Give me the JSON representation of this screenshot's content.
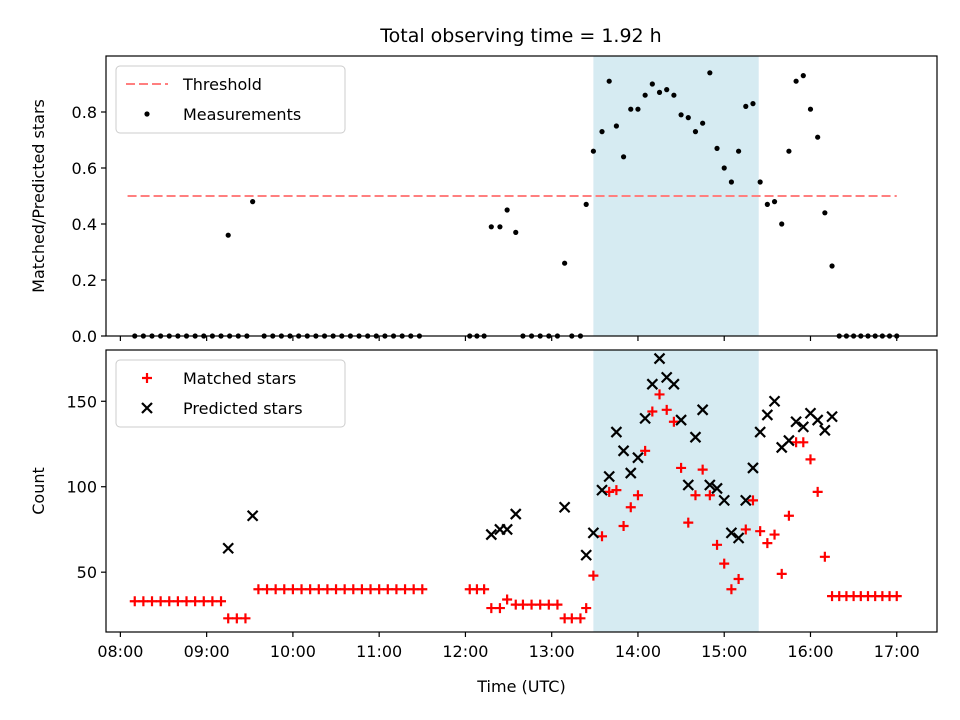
{
  "title": "Total observing time = 1.92 h",
  "chart_data": [
    {
      "type": "scatter",
      "ylabel": "Matched/Predicted stars",
      "xlim": [
        "07:50",
        "17:28"
      ],
      "ylim": [
        0,
        1.0
      ],
      "yticks": [
        "0.0",
        "0.2",
        "0.4",
        "0.6",
        "0.8"
      ],
      "shaded_span": [
        "13:29",
        "15:24"
      ],
      "legend_position": "upper-left",
      "threshold": {
        "name": "Threshold",
        "value": 0.5,
        "x_range": [
          "08:05",
          "17:00"
        ],
        "color": "#ff7f7f"
      },
      "series": [
        {
          "name": "Measurements",
          "color": "#000000",
          "points": [
            [
              "08:10",
              0.0
            ],
            [
              "08:16",
              0.0
            ],
            [
              "08:22",
              0.0
            ],
            [
              "08:28",
              0.0
            ],
            [
              "08:34",
              0.0
            ],
            [
              "08:40",
              0.0
            ],
            [
              "08:46",
              0.0
            ],
            [
              "08:52",
              0.0
            ],
            [
              "08:58",
              0.0
            ],
            [
              "09:04",
              0.0
            ],
            [
              "09:10",
              0.0
            ],
            [
              "09:16",
              0.0
            ],
            [
              "09:15",
              0.36
            ],
            [
              "09:22",
              0.0
            ],
            [
              "09:28",
              0.0
            ],
            [
              "09:32",
              0.48
            ],
            [
              "09:40",
              0.0
            ],
            [
              "09:46",
              0.0
            ],
            [
              "09:52",
              0.0
            ],
            [
              "09:58",
              0.0
            ],
            [
              "10:04",
              0.0
            ],
            [
              "10:10",
              0.0
            ],
            [
              "10:16",
              0.0
            ],
            [
              "10:22",
              0.0
            ],
            [
              "10:28",
              0.0
            ],
            [
              "10:34",
              0.0
            ],
            [
              "10:40",
              0.0
            ],
            [
              "10:46",
              0.0
            ],
            [
              "10:52",
              0.0
            ],
            [
              "10:58",
              0.0
            ],
            [
              "11:04",
              0.0
            ],
            [
              "11:10",
              0.0
            ],
            [
              "11:16",
              0.0
            ],
            [
              "11:22",
              0.0
            ],
            [
              "11:28",
              0.0
            ],
            [
              "12:03",
              0.0
            ],
            [
              "12:08",
              0.0
            ],
            [
              "12:13",
              0.0
            ],
            [
              "12:18",
              0.39
            ],
            [
              "12:24",
              0.39
            ],
            [
              "12:29",
              0.45
            ],
            [
              "12:35",
              0.37
            ],
            [
              "12:40",
              0.0
            ],
            [
              "12:46",
              0.0
            ],
            [
              "12:52",
              0.0
            ],
            [
              "12:58",
              0.0
            ],
            [
              "13:04",
              0.0
            ],
            [
              "13:09",
              0.26
            ],
            [
              "13:14",
              0.0
            ],
            [
              "13:20",
              0.0
            ],
            [
              "13:24",
              0.47
            ],
            [
              "13:29",
              0.66
            ],
            [
              "13:35",
              0.73
            ],
            [
              "13:40",
              0.91
            ],
            [
              "13:45",
              0.75
            ],
            [
              "13:50",
              0.64
            ],
            [
              "13:55",
              0.81
            ],
            [
              "14:00",
              0.81
            ],
            [
              "14:05",
              0.86
            ],
            [
              "14:10",
              0.9
            ],
            [
              "14:15",
              0.87
            ],
            [
              "14:20",
              0.88
            ],
            [
              "14:25",
              0.86
            ],
            [
              "14:30",
              0.79
            ],
            [
              "14:35",
              0.78
            ],
            [
              "14:40",
              0.73
            ],
            [
              "14:45",
              0.76
            ],
            [
              "14:50",
              0.94
            ],
            [
              "14:55",
              0.67
            ],
            [
              "15:00",
              0.6
            ],
            [
              "15:05",
              0.55
            ],
            [
              "15:10",
              0.66
            ],
            [
              "15:15",
              0.82
            ],
            [
              "15:20",
              0.83
            ],
            [
              "15:25",
              0.55
            ],
            [
              "15:30",
              0.47
            ],
            [
              "15:35",
              0.48
            ],
            [
              "15:40",
              0.4
            ],
            [
              "15:45",
              0.66
            ],
            [
              "15:50",
              0.91
            ],
            [
              "15:55",
              0.93
            ],
            [
              "16:00",
              0.81
            ],
            [
              "16:05",
              0.71
            ],
            [
              "16:10",
              0.44
            ],
            [
              "16:15",
              0.25
            ],
            [
              "16:20",
              0.0
            ],
            [
              "16:25",
              0.0
            ],
            [
              "16:30",
              0.0
            ],
            [
              "16:35",
              0.0
            ],
            [
              "16:40",
              0.0
            ],
            [
              "16:45",
              0.0
            ],
            [
              "16:50",
              0.0
            ],
            [
              "16:55",
              0.0
            ],
            [
              "17:00",
              0.0
            ]
          ]
        }
      ]
    },
    {
      "type": "scatter",
      "xlabel": "Time (UTC)",
      "ylabel": "Count",
      "xlim": [
        "07:50",
        "17:28"
      ],
      "ylim": [
        15,
        180
      ],
      "yticks": [
        "50",
        "100",
        "150"
      ],
      "xticks": [
        "08:00",
        "09:00",
        "10:00",
        "11:00",
        "12:00",
        "13:00",
        "14:00",
        "15:00",
        "16:00",
        "17:00"
      ],
      "shaded_span": [
        "13:29",
        "15:24"
      ],
      "legend_position": "upper-left",
      "series": [
        {
          "name": "Matched stars",
          "marker": "plus",
          "color": "#ff0000",
          "points": [
            [
              "08:10",
              33
            ],
            [
              "08:16",
              33
            ],
            [
              "08:22",
              33
            ],
            [
              "08:28",
              33
            ],
            [
              "08:34",
              33
            ],
            [
              "08:40",
              33
            ],
            [
              "08:46",
              33
            ],
            [
              "08:52",
              33
            ],
            [
              "08:58",
              33
            ],
            [
              "09:04",
              33
            ],
            [
              "09:10",
              33
            ],
            [
              "09:15",
              23
            ],
            [
              "09:21",
              23
            ],
            [
              "09:27",
              23
            ],
            [
              "09:36",
              40
            ],
            [
              "09:42",
              40
            ],
            [
              "09:48",
              40
            ],
            [
              "09:54",
              40
            ],
            [
              "10:00",
              40
            ],
            [
              "10:06",
              40
            ],
            [
              "10:12",
              40
            ],
            [
              "10:18",
              40
            ],
            [
              "10:24",
              40
            ],
            [
              "10:30",
              40
            ],
            [
              "10:36",
              40
            ],
            [
              "10:42",
              40
            ],
            [
              "10:48",
              40
            ],
            [
              "10:54",
              40
            ],
            [
              "11:00",
              40
            ],
            [
              "11:06",
              40
            ],
            [
              "11:12",
              40
            ],
            [
              "11:18",
              40
            ],
            [
              "11:24",
              40
            ],
            [
              "11:30",
              40
            ],
            [
              "12:03",
              40
            ],
            [
              "12:08",
              40
            ],
            [
              "12:13",
              40
            ],
            [
              "12:18",
              29
            ],
            [
              "12:24",
              29
            ],
            [
              "12:29",
              34
            ],
            [
              "12:35",
              31
            ],
            [
              "12:40",
              31
            ],
            [
              "12:46",
              31
            ],
            [
              "12:52",
              31
            ],
            [
              "12:58",
              31
            ],
            [
              "13:04",
              31
            ],
            [
              "13:09",
              23
            ],
            [
              "13:14",
              23
            ],
            [
              "13:20",
              23
            ],
            [
              "13:24",
              29
            ],
            [
              "13:29",
              48
            ],
            [
              "13:35",
              71
            ],
            [
              "13:40",
              97
            ],
            [
              "13:45",
              98
            ],
            [
              "13:50",
              77
            ],
            [
              "13:55",
              88
            ],
            [
              "14:00",
              95
            ],
            [
              "14:05",
              121
            ],
            [
              "14:10",
              144
            ],
            [
              "14:15",
              154
            ],
            [
              "14:20",
              145
            ],
            [
              "14:25",
              138
            ],
            [
              "14:30",
              111
            ],
            [
              "14:35",
              79
            ],
            [
              "14:40",
              95
            ],
            [
              "14:45",
              110
            ],
            [
              "14:50",
              95
            ],
            [
              "14:55",
              66
            ],
            [
              "15:00",
              55
            ],
            [
              "15:05",
              40
            ],
            [
              "15:10",
              46
            ],
            [
              "15:15",
              75
            ],
            [
              "15:20",
              92
            ],
            [
              "15:25",
              74
            ],
            [
              "15:30",
              67
            ],
            [
              "15:35",
              72
            ],
            [
              "15:40",
              49
            ],
            [
              "15:45",
              83
            ],
            [
              "15:50",
              126
            ],
            [
              "15:55",
              126
            ],
            [
              "16:00",
              116
            ],
            [
              "16:05",
              97
            ],
            [
              "16:10",
              59
            ],
            [
              "16:15",
              36
            ],
            [
              "16:20",
              36
            ],
            [
              "16:25",
              36
            ],
            [
              "16:30",
              36
            ],
            [
              "16:35",
              36
            ],
            [
              "16:40",
              36
            ],
            [
              "16:45",
              36
            ],
            [
              "16:50",
              36
            ],
            [
              "16:55",
              36
            ],
            [
              "17:00",
              36
            ]
          ]
        },
        {
          "name": "Predicted stars",
          "marker": "x",
          "color": "#000000",
          "points": [
            [
              "09:15",
              64
            ],
            [
              "09:32",
              83
            ],
            [
              "12:18",
              72
            ],
            [
              "12:24",
              75
            ],
            [
              "12:29",
              75
            ],
            [
              "12:35",
              84
            ],
            [
              "13:09",
              88
            ],
            [
              "13:24",
              60
            ],
            [
              "13:29",
              73
            ],
            [
              "13:35",
              98
            ],
            [
              "13:40",
              106
            ],
            [
              "13:45",
              132
            ],
            [
              "13:50",
              121
            ],
            [
              "13:55",
              108
            ],
            [
              "14:00",
              117
            ],
            [
              "14:05",
              140
            ],
            [
              "14:10",
              160
            ],
            [
              "14:15",
              175
            ],
            [
              "14:20",
              164
            ],
            [
              "14:25",
              160
            ],
            [
              "14:30",
              139
            ],
            [
              "14:35",
              101
            ],
            [
              "14:40",
              129
            ],
            [
              "14:45",
              145
            ],
            [
              "14:50",
              101
            ],
            [
              "14:55",
              99
            ],
            [
              "15:00",
              92
            ],
            [
              "15:05",
              73
            ],
            [
              "15:10",
              70
            ],
            [
              "15:15",
              92
            ],
            [
              "15:20",
              111
            ],
            [
              "15:25",
              132
            ],
            [
              "15:30",
              142
            ],
            [
              "15:35",
              150
            ],
            [
              "15:40",
              123
            ],
            [
              "15:45",
              127
            ],
            [
              "15:50",
              138
            ],
            [
              "15:55",
              135
            ],
            [
              "16:00",
              143
            ],
            [
              "16:05",
              139
            ],
            [
              "16:10",
              133
            ],
            [
              "16:15",
              141
            ]
          ]
        }
      ]
    }
  ]
}
